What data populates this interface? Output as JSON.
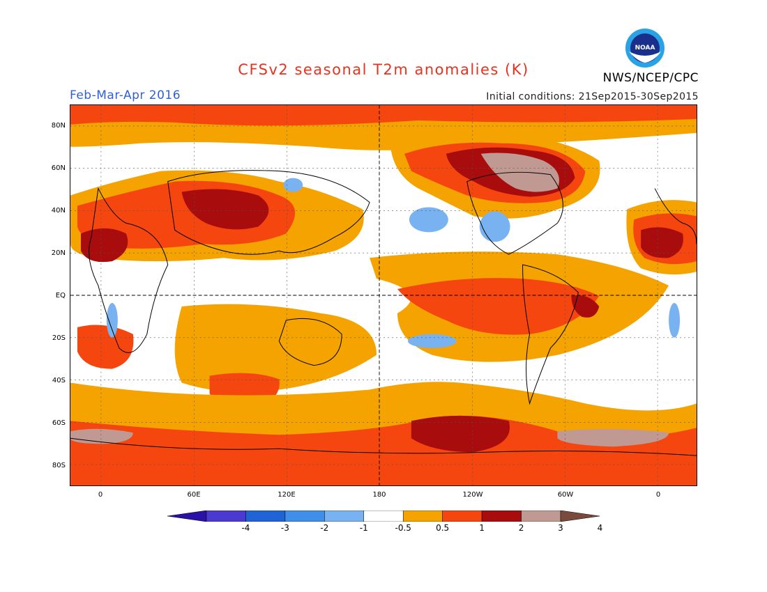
{
  "header": {
    "title": "CFSv2 seasonal T2m anomalies (K)",
    "org": "NWS/NCEP/CPC",
    "season": "Feb-Mar-Apr 2016",
    "initial_conditions": "Initial conditions: 21Sep2015-30Sep2015",
    "logo_text": "NOAA"
  },
  "map": {
    "lat_labels": [
      "80N",
      "60N",
      "40N",
      "20N",
      "EQ",
      "20S",
      "40S",
      "60S",
      "80S"
    ],
    "lon_labels": [
      "0",
      "60E",
      "120E",
      "180",
      "120W",
      "60W",
      "0"
    ]
  },
  "colorbar": {
    "labels": [
      "-4",
      "-3",
      "-2",
      "-1",
      "-0.5",
      "0.5",
      "1",
      "2",
      "3",
      "4"
    ],
    "colors": [
      "#2a12a8",
      "#4a3ad0",
      "#1f63d6",
      "#3f8ee8",
      "#78b2f0",
      "#ffffff",
      "#f5a300",
      "#f5460f",
      "#a80c0c",
      "#c09a92",
      "#7a4a3c"
    ]
  },
  "palette": {
    "white": "#ffffff",
    "orange": "#f5a300",
    "red": "#f5460f",
    "darkred": "#a80c0c",
    "tan": "#c09a92",
    "lightblue": "#78b2f0",
    "blue": "#3f8ee8"
  }
}
